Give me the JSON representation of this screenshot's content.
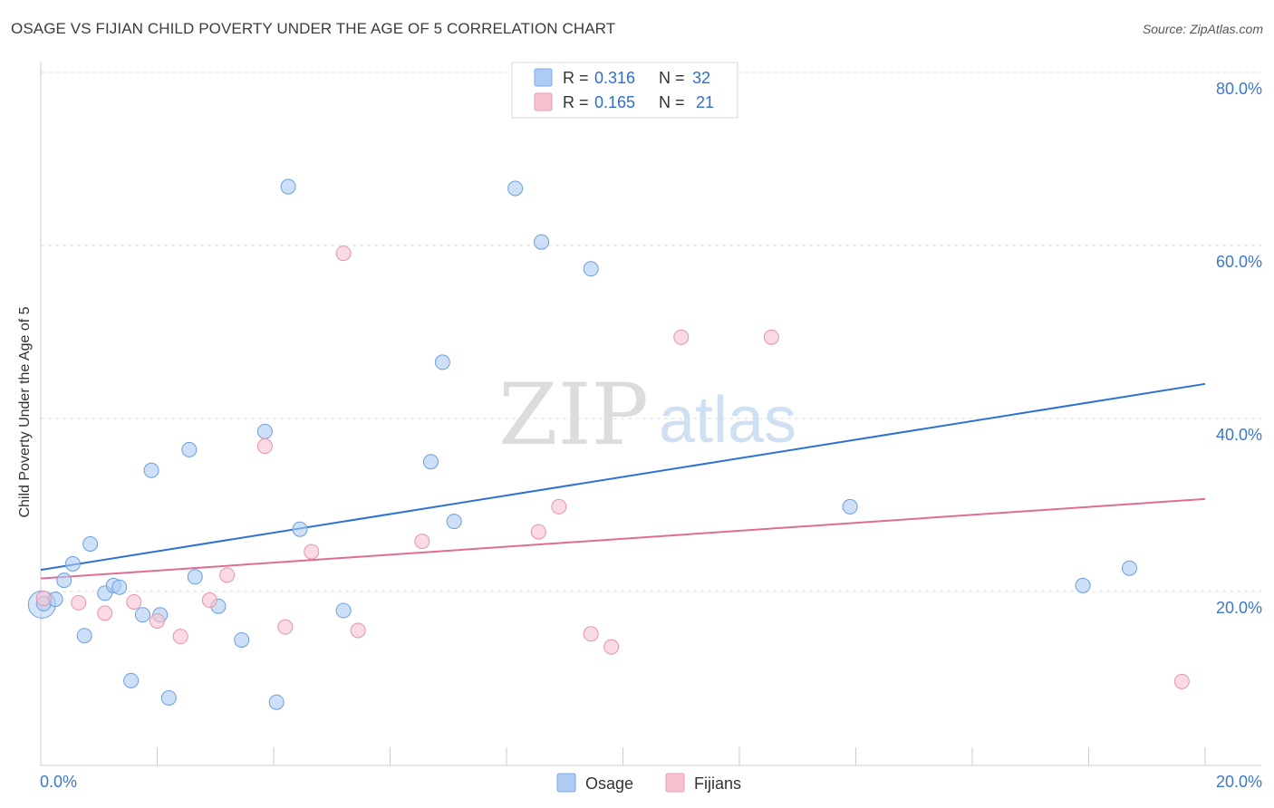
{
  "title": "OSAGE VS FIJIAN CHILD POVERTY UNDER THE AGE OF 5 CORRELATION CHART",
  "source": "Source: ZipAtlas.com",
  "watermark": {
    "zip": "ZIP",
    "atlas": "atlas"
  },
  "legend": {
    "r_label": "R =",
    "n_label": "N =",
    "rows": [
      {
        "name": "Osage",
        "r": "0.316",
        "n": "32",
        "color": "#aeccf3",
        "stroke": "#7ea8e0"
      },
      {
        "name": "Fijians",
        "r": "0.165",
        "n": "21",
        "color": "#f8c3d1",
        "stroke": "#e79ab0"
      }
    ]
  },
  "chart_data": {
    "type": "scatter",
    "title": "OSAGE VS FIJIAN CHILD POVERTY UNDER THE AGE OF 5 CORRELATION CHART",
    "xlabel": "",
    "ylabel": "Child Poverty Under the Age of 5",
    "xlim": [
      0,
      20
    ],
    "ylim": [
      0,
      80
    ],
    "x_tick_labels": [
      {
        "value": 0,
        "label": "0.0%"
      },
      {
        "value": 20,
        "label": "20.0%"
      }
    ],
    "y_tick_labels": [
      {
        "value": 20,
        "label": "20.0%"
      },
      {
        "value": 40,
        "label": "40.0%"
      },
      {
        "value": 60,
        "label": "60.0%"
      },
      {
        "value": 80,
        "label": "80.0%"
      }
    ],
    "series": [
      {
        "name": "Osage",
        "color": "#aeccf3",
        "stroke": "#6a9ee0",
        "line_color": "#2d72d2",
        "trend": {
          "x": [
            0,
            20
          ],
          "y": [
            22.5,
            44.0
          ]
        },
        "points": [
          [
            0.05,
            18.6
          ],
          [
            0.25,
            19.1
          ],
          [
            0.4,
            21.3
          ],
          [
            0.55,
            23.2
          ],
          [
            0.75,
            14.9
          ],
          [
            0.85,
            25.5
          ],
          [
            1.1,
            19.8
          ],
          [
            1.25,
            20.7
          ],
          [
            1.35,
            20.5
          ],
          [
            1.55,
            9.7
          ],
          [
            1.75,
            17.3
          ],
          [
            1.9,
            34.0
          ],
          [
            2.05,
            17.3
          ],
          [
            2.2,
            7.7
          ],
          [
            2.55,
            36.4
          ],
          [
            2.65,
            21.7
          ],
          [
            3.05,
            18.3
          ],
          [
            3.45,
            14.4
          ],
          [
            3.85,
            38.5
          ],
          [
            4.05,
            7.2
          ],
          [
            4.25,
            66.8
          ],
          [
            4.45,
            27.2
          ],
          [
            5.2,
            17.8
          ],
          [
            6.7,
            35.0
          ],
          [
            6.9,
            46.5
          ],
          [
            7.1,
            28.1
          ],
          [
            8.15,
            66.6
          ],
          [
            8.6,
            60.4
          ],
          [
            9.45,
            57.3
          ],
          [
            13.9,
            29.8
          ],
          [
            17.9,
            20.7
          ],
          [
            18.7,
            22.7
          ]
        ]
      },
      {
        "name": "Fijians",
        "color": "#f8c3d1",
        "stroke": "#e893aa",
        "line_color": "#e06c93",
        "trend": {
          "x": [
            0,
            20
          ],
          "y": [
            21.5,
            30.7
          ]
        },
        "points": [
          [
            0.05,
            19.2
          ],
          [
            0.65,
            18.7
          ],
          [
            1.1,
            17.5
          ],
          [
            1.6,
            18.8
          ],
          [
            2.0,
            16.6
          ],
          [
            2.4,
            14.8
          ],
          [
            2.9,
            19.0
          ],
          [
            3.2,
            21.9
          ],
          [
            3.85,
            36.8
          ],
          [
            4.2,
            15.9
          ],
          [
            4.65,
            24.6
          ],
          [
            5.2,
            59.1
          ],
          [
            5.45,
            15.5
          ],
          [
            6.55,
            25.8
          ],
          [
            8.55,
            26.9
          ],
          [
            8.9,
            29.8
          ],
          [
            9.45,
            15.1
          ],
          [
            9.8,
            13.6
          ],
          [
            11.0,
            49.4
          ],
          [
            12.55,
            49.4
          ],
          [
            19.6,
            9.6
          ]
        ]
      }
    ]
  }
}
